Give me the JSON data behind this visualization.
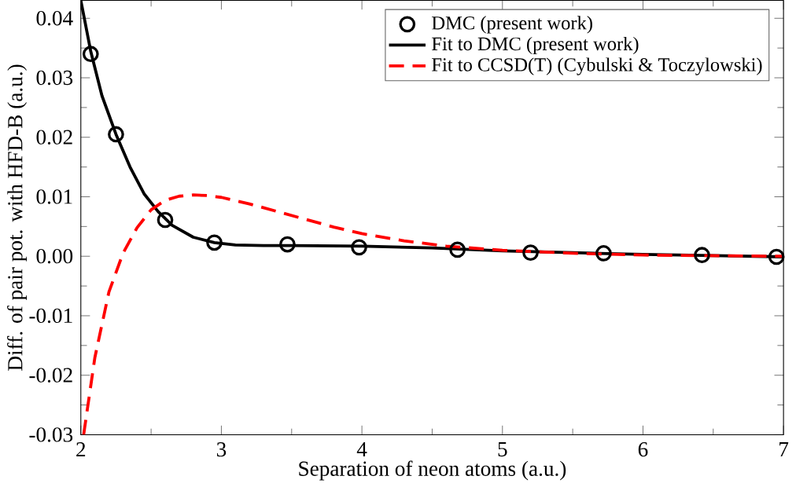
{
  "chart_data": {
    "type": "line",
    "xlabel": "Separation of neon atoms (a.u.)",
    "ylabel": "Diff. of pair pot. with HFD-B (a.u.)",
    "xlim": [
      2,
      7
    ],
    "xticks": [
      2,
      3,
      4,
      5,
      6,
      7
    ],
    "ylim": [
      -0.03,
      0.043
    ],
    "yticks": [
      {
        "value": -0.03,
        "label": "-0.03"
      },
      {
        "value": -0.02,
        "label": "-0.02"
      },
      {
        "value": -0.01,
        "label": "-0.01"
      },
      {
        "value": 0,
        "label": "0.00"
      },
      {
        "value": 0.01,
        "label": "0.01"
      },
      {
        "value": 0.02,
        "label": "0.02"
      },
      {
        "value": 0.03,
        "label": "0.03"
      },
      {
        "value": 0.04,
        "label": "0.04"
      }
    ],
    "legend": "top right",
    "grid": false,
    "series": [
      {
        "name": "DMC (present work)",
        "type": "scatter",
        "marker": "circle",
        "color": "#000000",
        "x": [
          2.07,
          2.25,
          2.6,
          2.95,
          3.47,
          3.98,
          4.68,
          5.2,
          5.72,
          6.42,
          6.95
        ],
        "values": [
          0.034,
          0.0205,
          0.0061,
          0.0023,
          0.002,
          0.0015,
          0.0011,
          0.0006,
          0.0005,
          0.0002,
          -0.0001
        ]
      },
      {
        "name": "Fit to DMC (present work)",
        "line_style": "solid",
        "color": "#000000",
        "x": [
          2.0,
          2.07,
          2.15,
          2.25,
          2.35,
          2.45,
          2.55,
          2.65,
          2.8,
          2.95,
          3.1,
          3.3,
          3.5,
          4.0,
          4.5,
          5.0,
          5.5,
          6.0,
          6.5,
          7.0
        ],
        "values": [
          0.043,
          0.0345,
          0.027,
          0.0205,
          0.015,
          0.0105,
          0.0075,
          0.0052,
          0.0032,
          0.0023,
          0.0019,
          0.0018,
          0.0018,
          0.0017,
          0.0014,
          0.0009,
          0.0006,
          0.0003,
          0.0001,
          -0.0001
        ]
      },
      {
        "name": "Fit to CCSD(T) (Cybulski & Toczylowski)",
        "line_style": "dashed",
        "color": "#ff0000",
        "x": [
          2.02,
          2.1,
          2.2,
          2.3,
          2.4,
          2.5,
          2.6,
          2.7,
          2.8,
          2.9,
          3.0,
          3.2,
          3.4,
          3.6,
          3.8,
          4.0,
          4.3,
          4.6,
          5.0,
          5.5,
          6.0,
          7.0
        ],
        "values": [
          -0.03,
          -0.017,
          -0.006,
          0.0005,
          0.0048,
          0.0078,
          0.0094,
          0.0101,
          0.0103,
          0.0102,
          0.0099,
          0.0088,
          0.0075,
          0.0062,
          0.0049,
          0.0038,
          0.0026,
          0.0017,
          0.001,
          0.0005,
          0.0002,
          0.0
        ]
      }
    ]
  }
}
